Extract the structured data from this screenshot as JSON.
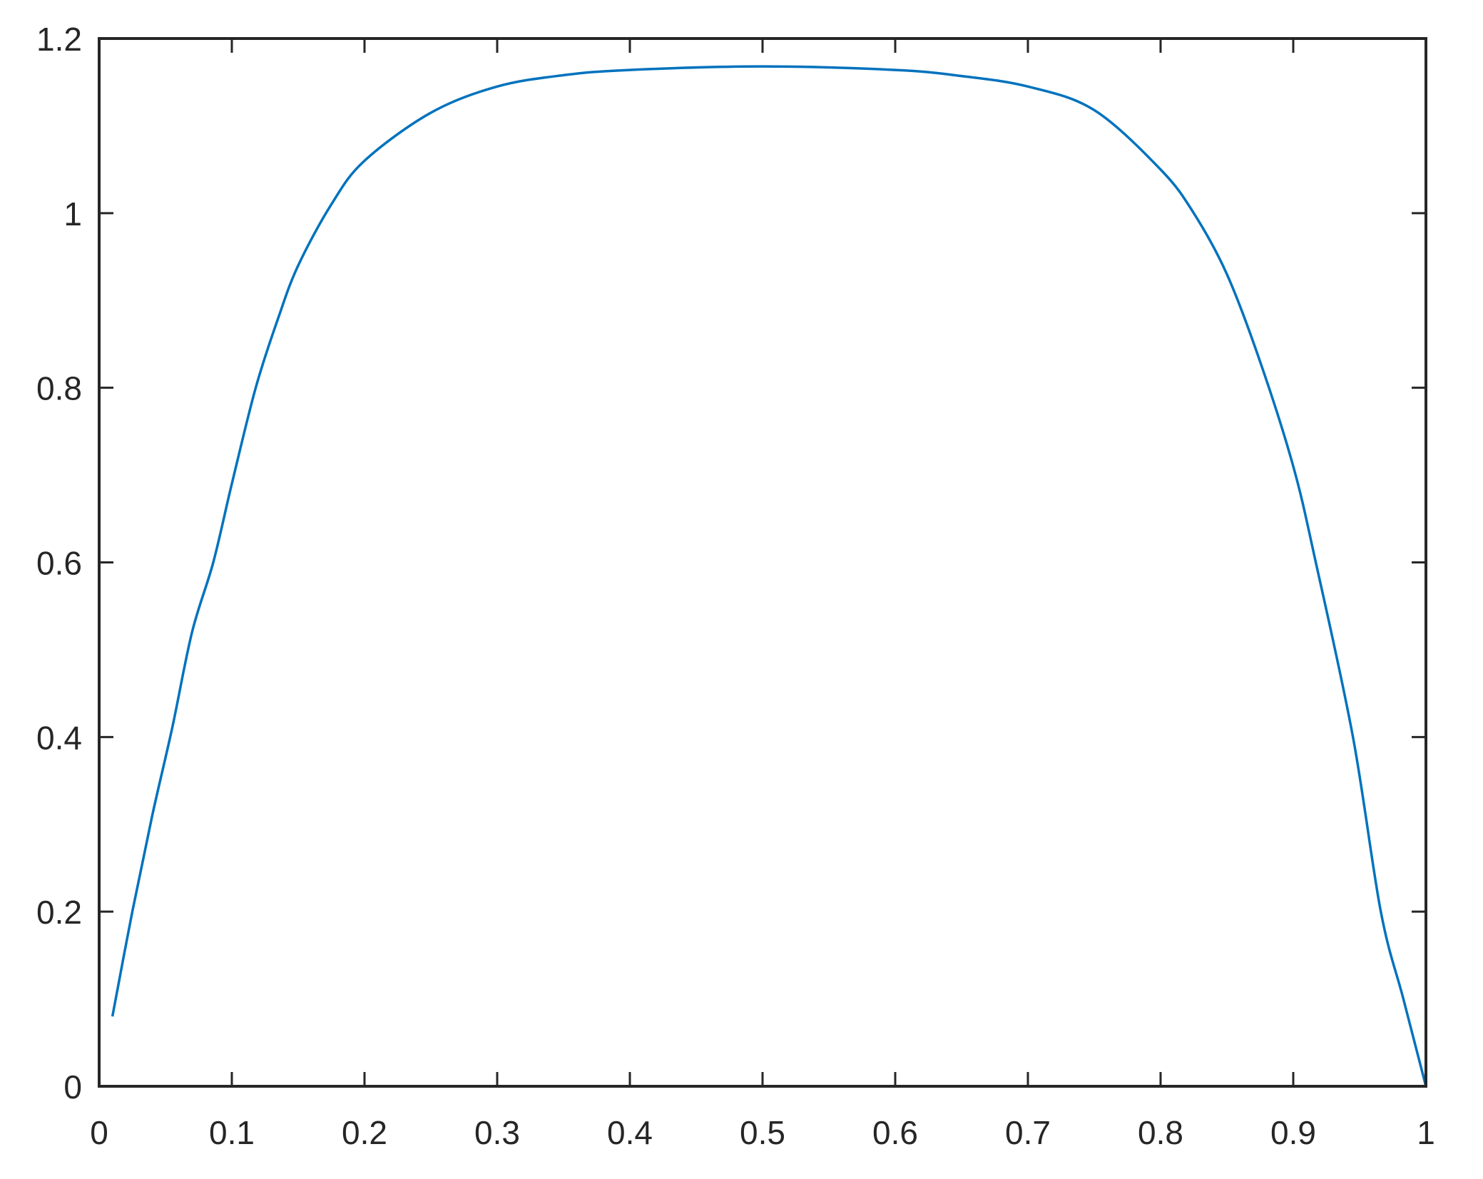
{
  "chart_data": {
    "type": "line",
    "title": "",
    "xlabel": "",
    "ylabel": "",
    "xlim": [
      0,
      1
    ],
    "ylim": [
      0,
      1.2
    ],
    "grid": false,
    "box": true,
    "x_ticks": [
      "0",
      "0.1",
      "0.2",
      "0.3",
      "0.4",
      "0.5",
      "0.6",
      "0.7",
      "0.8",
      "0.9",
      "1"
    ],
    "y_ticks": [
      "0",
      "0.2",
      "0.4",
      "0.6",
      "0.8",
      "1",
      "1.2"
    ],
    "series": [
      {
        "color": "#0072BD",
        "x": [
          0.01,
          0.025,
          0.04,
          0.055,
          0.07,
          0.086,
          0.1,
          0.118,
          0.135,
          0.15,
          0.175,
          0.2,
          0.25,
          0.3,
          0.35,
          0.4,
          0.5,
          0.6,
          0.65,
          0.7,
          0.75,
          0.8,
          0.825,
          0.85,
          0.875,
          0.9,
          0.917,
          0.945,
          0.966,
          0.983,
          1.0
        ],
        "y": [
          0.08,
          0.2,
          0.31,
          0.41,
          0.52,
          0.6,
          0.69,
          0.8,
          0.88,
          0.94,
          1.01,
          1.06,
          1.115,
          1.145,
          1.158,
          1.164,
          1.168,
          1.164,
          1.157,
          1.145,
          1.118,
          1.05,
          1.0,
          0.93,
          0.83,
          0.71,
          0.6,
          0.4,
          0.2,
          0.1,
          0.0
        ]
      }
    ]
  }
}
